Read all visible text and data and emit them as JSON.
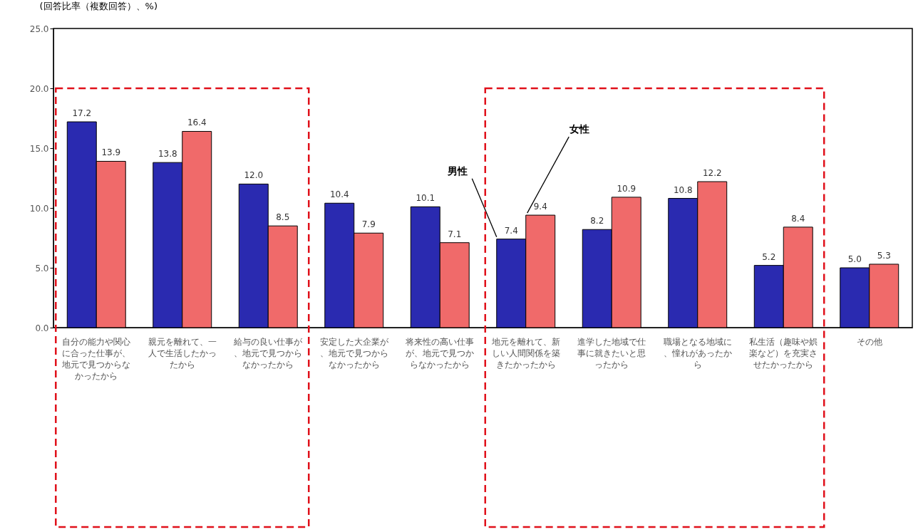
{
  "chart_data": {
    "type": "bar",
    "ylabel": "(回答比率（複数回答）、%)",
    "categories": [
      "自分の能力や関心に合った仕事が、地元で見つからなかったから",
      "親元を離れて、一人で生活したかったから",
      "給与の良い仕事が、地元で見つからなかったから",
      "安定した大企業が、地元で見つからなかったから",
      "将来性の高い仕事が、地元で見つからなかったから",
      "地元を離れて、新しい人間関係を築きたかったから",
      "進学した地域で仕事に就きたいと思ったから",
      "職場となる地域に、憧れがあったから",
      "私生活（趣味や娯楽など）を充実させたかったから",
      "その他"
    ],
    "series": [
      {
        "name": "男性",
        "color": "#2a2ab0",
        "values": [
          17.2,
          13.8,
          12.0,
          10.4,
          10.1,
          7.4,
          8.2,
          10.8,
          5.2,
          5.0
        ],
        "value_labels": [
          "17.2",
          "13.8",
          "12.0",
          "10.4",
          "10.1",
          "7.4",
          "8.2",
          "10.8",
          "5.2",
          "5.0"
        ]
      },
      {
        "name": "女性",
        "color": "#f06a6a",
        "values": [
          13.9,
          16.4,
          8.5,
          7.9,
          7.1,
          9.4,
          10.9,
          12.2,
          8.4,
          5.3
        ],
        "value_labels": [
          "13.9",
          "16.4",
          "8.5",
          "7.9",
          "7.1",
          "9.4",
          "10.9",
          "12.2",
          "8.4",
          "5.3"
        ]
      }
    ],
    "ylim": [
      0,
      25
    ],
    "yticks": [
      {
        "value": 0,
        "label": "0.0"
      },
      {
        "value": 5,
        "label": "5.0"
      },
      {
        "value": 10,
        "label": "10.0"
      },
      {
        "value": 15,
        "label": "15.0"
      },
      {
        "value": 20,
        "label": "20.0"
      },
      {
        "value": 25,
        "label": "25.0"
      }
    ],
    "grid": false,
    "legend": false
  }
}
